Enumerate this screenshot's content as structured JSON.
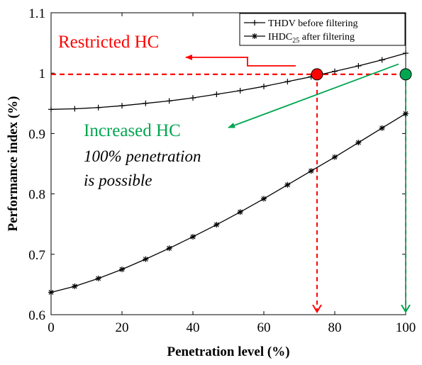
{
  "chart_data": {
    "type": "line",
    "xlabel": "Penetration level (%)",
    "ylabel": "Performance index (%)",
    "xlim": [
      0,
      100
    ],
    "ylim": [
      0.6,
      1.1
    ],
    "x_ticks": [
      "0",
      "20",
      "40",
      "60",
      "80",
      "100"
    ],
    "y_ticks": [
      "0.6",
      "0.7",
      "0.8",
      "0.9",
      "1",
      "1.1"
    ],
    "grid": false,
    "legend_position": "top-right",
    "x": [
      0,
      6.67,
      13.33,
      20,
      26.67,
      33.33,
      40,
      46.67,
      53.33,
      60,
      66.67,
      73.33,
      80,
      86.67,
      93.33,
      100
    ],
    "series": [
      {
        "name": "THDV before filtering",
        "marker": "plus",
        "color": "#000000",
        "values": [
          0.94,
          0.941,
          0.943,
          0.946,
          0.95,
          0.954,
          0.959,
          0.965,
          0.971,
          0.978,
          0.986,
          0.994,
          1.003,
          1.012,
          1.022,
          1.033
        ]
      },
      {
        "name_main": "IHDC",
        "name_sub": "25",
        "name_rest": " after filtering",
        "marker": "star",
        "color": "#000000",
        "values": [
          0.637,
          0.647,
          0.66,
          0.675,
          0.692,
          0.71,
          0.729,
          0.749,
          0.77,
          0.792,
          0.815,
          0.838,
          0.861,
          0.885,
          0.909,
          0.933
        ]
      }
    ],
    "annotations": {
      "restricted_label": "Restricted HC",
      "restricted_color": "#ff0000",
      "restricted_x": 75,
      "restricted_y": 0.998,
      "increased_label": "Increased HC",
      "increased_color": "#00a650",
      "increased_x": 100,
      "increased_y": 0.998,
      "note_line1": "100% penetration",
      "note_line2": "is possible"
    }
  }
}
